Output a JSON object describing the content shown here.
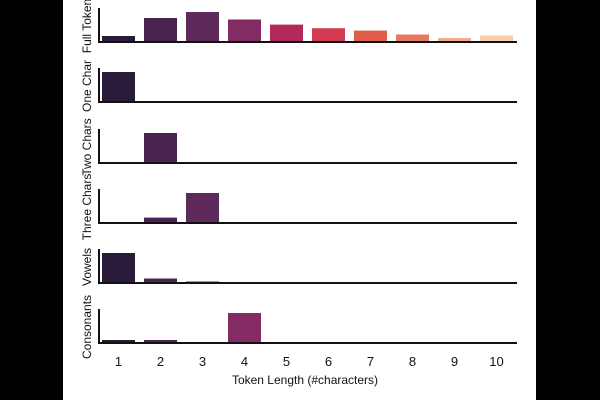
{
  "chart_data": {
    "type": "bar",
    "categories": [
      "1",
      "2",
      "3",
      "4",
      "5",
      "6",
      "7",
      "8",
      "9",
      "10"
    ],
    "xlabel": "Token Length (#characters)",
    "colors": [
      "#2a1b3b",
      "#4a2450",
      "#5e2a5c",
      "#842b63",
      "#b4295b",
      "#d23b52",
      "#e05c4b",
      "#e5795f",
      "#f0ab8c",
      "#f5cfae"
    ],
    "panels": [
      {
        "ylabel": "Full Token",
        "values": [
          0.2,
          0.8,
          1.0,
          0.75,
          0.58,
          0.46,
          0.38,
          0.25,
          0.13,
          0.22
        ],
        "ylim": [
          0,
          1.0
        ]
      },
      {
        "ylabel": "One Char",
        "values": [
          1.0,
          0,
          0,
          0,
          0,
          0,
          0,
          0,
          0,
          0
        ],
        "ylim": [
          0,
          1.0
        ]
      },
      {
        "ylabel": "Two Chars",
        "values": [
          0,
          1.0,
          0,
          0,
          0,
          0,
          0,
          0,
          0,
          0
        ],
        "ylim": [
          0,
          1.0
        ]
      },
      {
        "ylabel": "Three Chars",
        "values": [
          0,
          0.18,
          1.0,
          0,
          0,
          0,
          0,
          0,
          0,
          0
        ],
        "ylim": [
          0,
          1.0
        ]
      },
      {
        "ylabel": "Vowels",
        "values": [
          1.0,
          0.15,
          0.05,
          0,
          0,
          0,
          0,
          0,
          0,
          0
        ],
        "ylim": [
          0,
          1.0
        ]
      },
      {
        "ylabel": "Consonants",
        "values": [
          0.1,
          0.1,
          0,
          1.0,
          0,
          0,
          0,
          0,
          0,
          0
        ],
        "ylim": [
          0,
          1.0
        ]
      }
    ]
  }
}
